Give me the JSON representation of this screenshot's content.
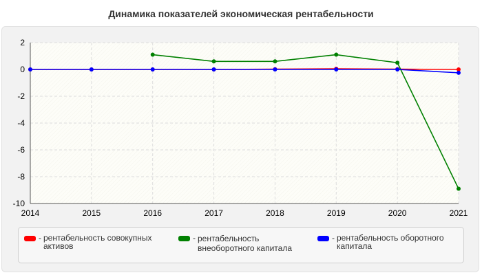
{
  "chart_data": {
    "type": "line",
    "title": "Динамика показателей экономическая рентабельности",
    "xlabel": "",
    "ylabel": "",
    "categories": [
      "2014",
      "2015",
      "2016",
      "2017",
      "2018",
      "2019",
      "2020",
      "2021"
    ],
    "ylim": [
      -10,
      2
    ],
    "yticks": [
      2,
      0,
      -2,
      -4,
      -6,
      -8,
      -10
    ],
    "grid": true,
    "legend_position": "bottom",
    "series": [
      {
        "name": "рентабельность совокупных активов",
        "color": "#ff0000",
        "values": [
          0,
          0,
          0,
          0,
          0.02,
          0.05,
          0.02,
          0
        ]
      },
      {
        "name": "рентабельность внеоборотного капитала",
        "color": "#008000",
        "values": [
          null,
          null,
          1.1,
          0.6,
          0.6,
          1.1,
          0.5,
          -8.9
        ]
      },
      {
        "name": "рентабельность оборотного капитала",
        "color": "#0000ff",
        "values": [
          0,
          0,
          0,
          0,
          0,
          0,
          0,
          -0.25
        ]
      }
    ]
  },
  "legend": {
    "items": [
      {
        "lines": [
          "рентабельность совокупных",
          "активов"
        ],
        "color": "#ff0000"
      },
      {
        "lines": [
          "рентабельность",
          "внеоборотного капитала"
        ],
        "color": "#008000"
      },
      {
        "lines": [
          "рентабельность оборотного",
          "капитала"
        ],
        "color": "#0000ff"
      }
    ]
  }
}
